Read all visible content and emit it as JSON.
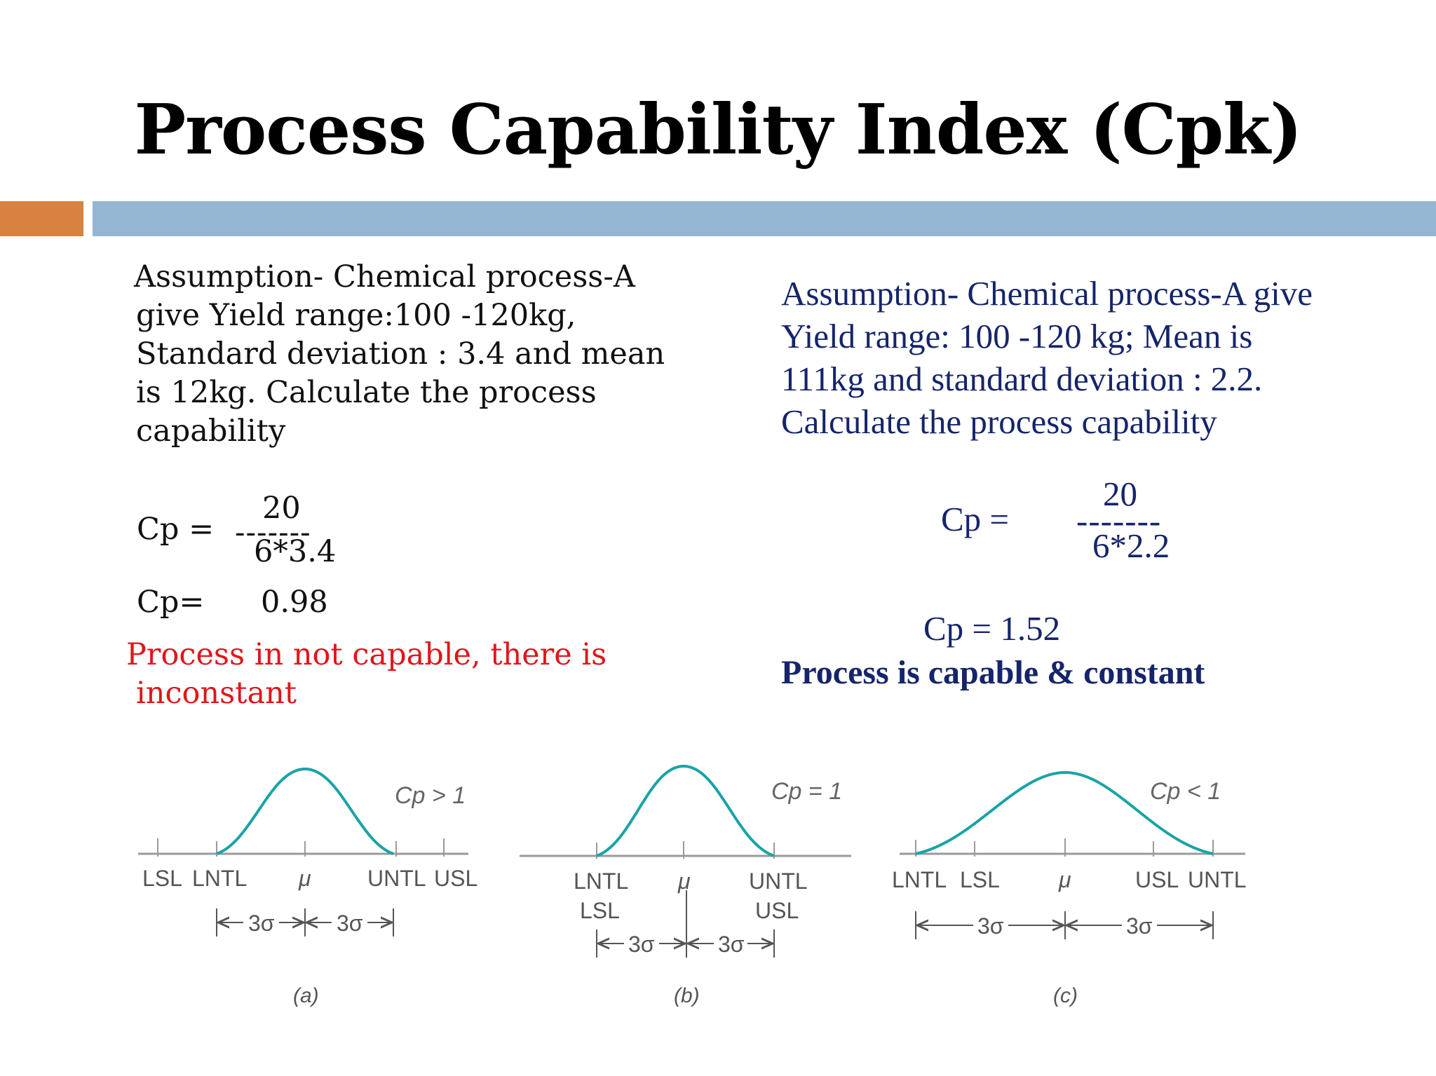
{
  "title": "Process Capability Index (Cpk)",
  "colors": {
    "accent_orange": "#D9823F",
    "accent_blue": "#94B6D2",
    "navy": "#15256B",
    "red": "#E0161B",
    "curve": "#1AA3A6",
    "axis": "#9A9A9A"
  },
  "left": {
    "assumption_lines": [
      "Assumption- Chemical process-A",
      "give  Yield range:100 -120kg,",
      "Standard deviation : 3.4 and mean",
      "is 12kg. Calculate the process",
      "capability"
    ],
    "cp_label": "Cp =",
    "numerator": "20",
    "dashes": "-------",
    "denominator": "6*3.4",
    "result_label": "Cp=",
    "result_value": "0.98",
    "conclusion_lines": [
      "Process in not capable,  there is",
      "inconstant"
    ]
  },
  "right": {
    "assumption_lines": [
      "Assumption- Chemical process-A give",
      "Yield range:   100 -120 kg; Mean  is",
      "111kg and standard  deviation : 2.2.",
      "Calculate the process capability"
    ],
    "cp_label": "Cp  =",
    "numerator": "20",
    "dashes": "-------",
    "denominator": "6*2.2",
    "result": "Cp = 1.52",
    "conclusion": "Process is capable & constant"
  },
  "figures": [
    {
      "caption": "(a)",
      "cp_label": "Cp > 1",
      "limit_labels": [
        "LSL",
        "LNTL",
        "μ",
        "UNTL",
        "USL"
      ],
      "sigma_labels": [
        "3σ",
        "3σ"
      ]
    },
    {
      "caption": "(b)",
      "cp_label": "Cp = 1",
      "limit_labels": [
        "LNTL",
        "μ",
        "UNTL"
      ],
      "limit_labels_second_row": [
        "LSL",
        "USL"
      ],
      "sigma_labels": [
        "3σ",
        "3σ"
      ]
    },
    {
      "caption": "(c)",
      "cp_label": "Cp < 1",
      "limit_labels": [
        "LNTL",
        "LSL",
        "μ",
        "USL",
        "UNTL"
      ],
      "sigma_labels": [
        "3σ",
        "3σ"
      ]
    }
  ]
}
